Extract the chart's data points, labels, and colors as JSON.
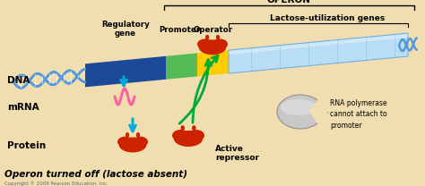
{
  "bg_color": "#f0deb0",
  "title_operon": "OPERON",
  "label_dna": "DNA",
  "label_mrna": "mRNA",
  "label_protein": "Protein",
  "label_reg_gene": "Regulatory\ngene",
  "label_promoter": "Promoter",
  "label_operator": "Operator",
  "label_lactose": "Lactose-utilization genes",
  "label_active_rep": "Active\nrepressor",
  "label_rna_poly": "RNA polymerase\ncannot attach to\npromoter",
  "label_operon_off": "Operon turned off (lactose absent)",
  "label_copyright": "Copyright © 2009 Pearson Education, Inc.",
  "dna_blue": "#3a7bc8",
  "dna_light": "#a8d4f0",
  "reg_color": "#1a4a99",
  "prom_color": "#55bb55",
  "oper_color": "#ffcc00",
  "lac_color": "#b8ddf5",
  "lac_edge": "#6aabe0",
  "rep_color": "#cc2200",
  "rna_color": "#b0b0b0",
  "mrna_color": "#ff60a0",
  "cyan_arr": "#00aadd",
  "green_arr": "#00aa33",
  "helix_color": "#5599dd"
}
